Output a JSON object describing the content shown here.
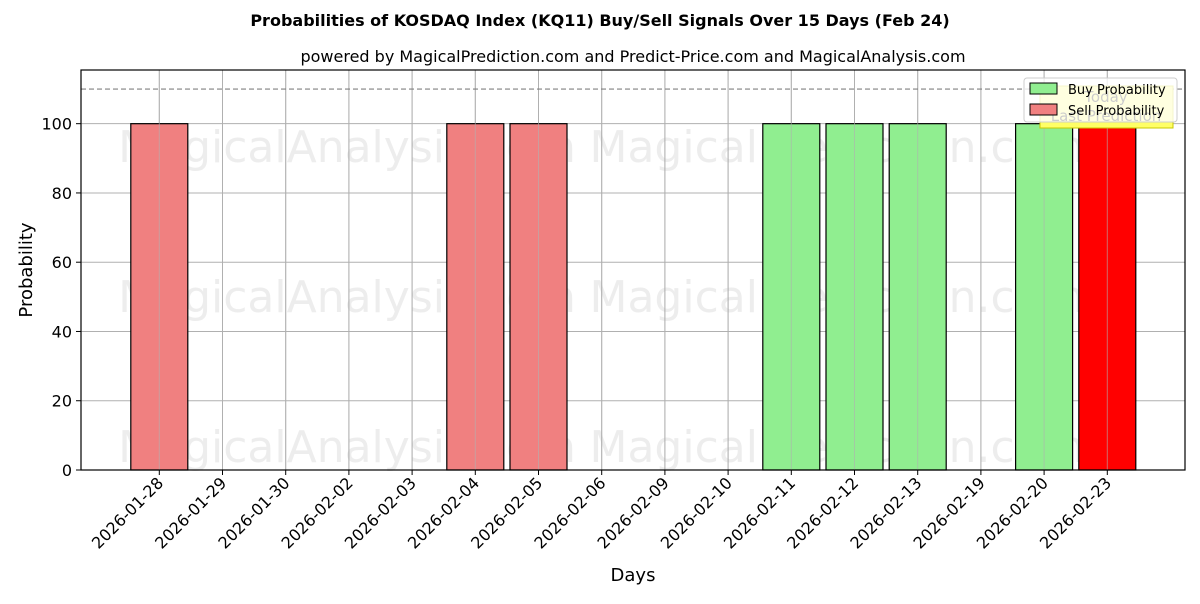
{
  "chart_data": {
    "type": "bar",
    "title": "Probabilities of KOSDAQ Index (KQ11) Buy/Sell Signals Over 15 Days (Feb 24)",
    "subtitle": "powered by MagicalPrediction.com and Predict-Price.com and MagicalAnalysis.com",
    "xlabel": "Days",
    "ylabel": "Probability",
    "ylim": [
      0,
      115.5
    ],
    "yticks": [
      0,
      20,
      40,
      60,
      80,
      100
    ],
    "grid": true,
    "reference_line": {
      "y": 110,
      "style": "dashed",
      "color": "#808080"
    },
    "categories": [
      "2026-01-28",
      "2026-01-29",
      "2026-01-30",
      "2026-02-02",
      "2026-02-03",
      "2026-02-04",
      "2026-02-05",
      "2026-02-06",
      "2026-02-09",
      "2026-02-10",
      "2026-02-11",
      "2026-02-12",
      "2026-02-13",
      "2026-02-19",
      "2026-02-20",
      "2026-02-23"
    ],
    "series": [
      {
        "name": "Buy Probability",
        "color": "#90ee90",
        "values": [
          0,
          0,
          0,
          0,
          0,
          0,
          0,
          0,
          0,
          0,
          100,
          100,
          100,
          0,
          100,
          0
        ]
      },
      {
        "name": "Sell Probability",
        "color": "#f08080",
        "values": [
          100,
          0,
          0,
          0,
          0,
          100,
          100,
          0,
          0,
          0,
          0,
          0,
          0,
          0,
          0,
          100
        ]
      }
    ],
    "highlight": {
      "category": "2026-02-23",
      "series": "Sell Probability",
      "color": "#ff0000"
    },
    "legend": {
      "position": "upper right",
      "entries": [
        "Buy Probability",
        "Sell Probability"
      ]
    },
    "annotation": {
      "lines": [
        "Today",
        "Last Prediction"
      ],
      "background": "#ffff66",
      "border": "#c8c800"
    },
    "watermarks": [
      "MagicalAnalysis.com",
      "MagicalPrediction.com"
    ]
  }
}
